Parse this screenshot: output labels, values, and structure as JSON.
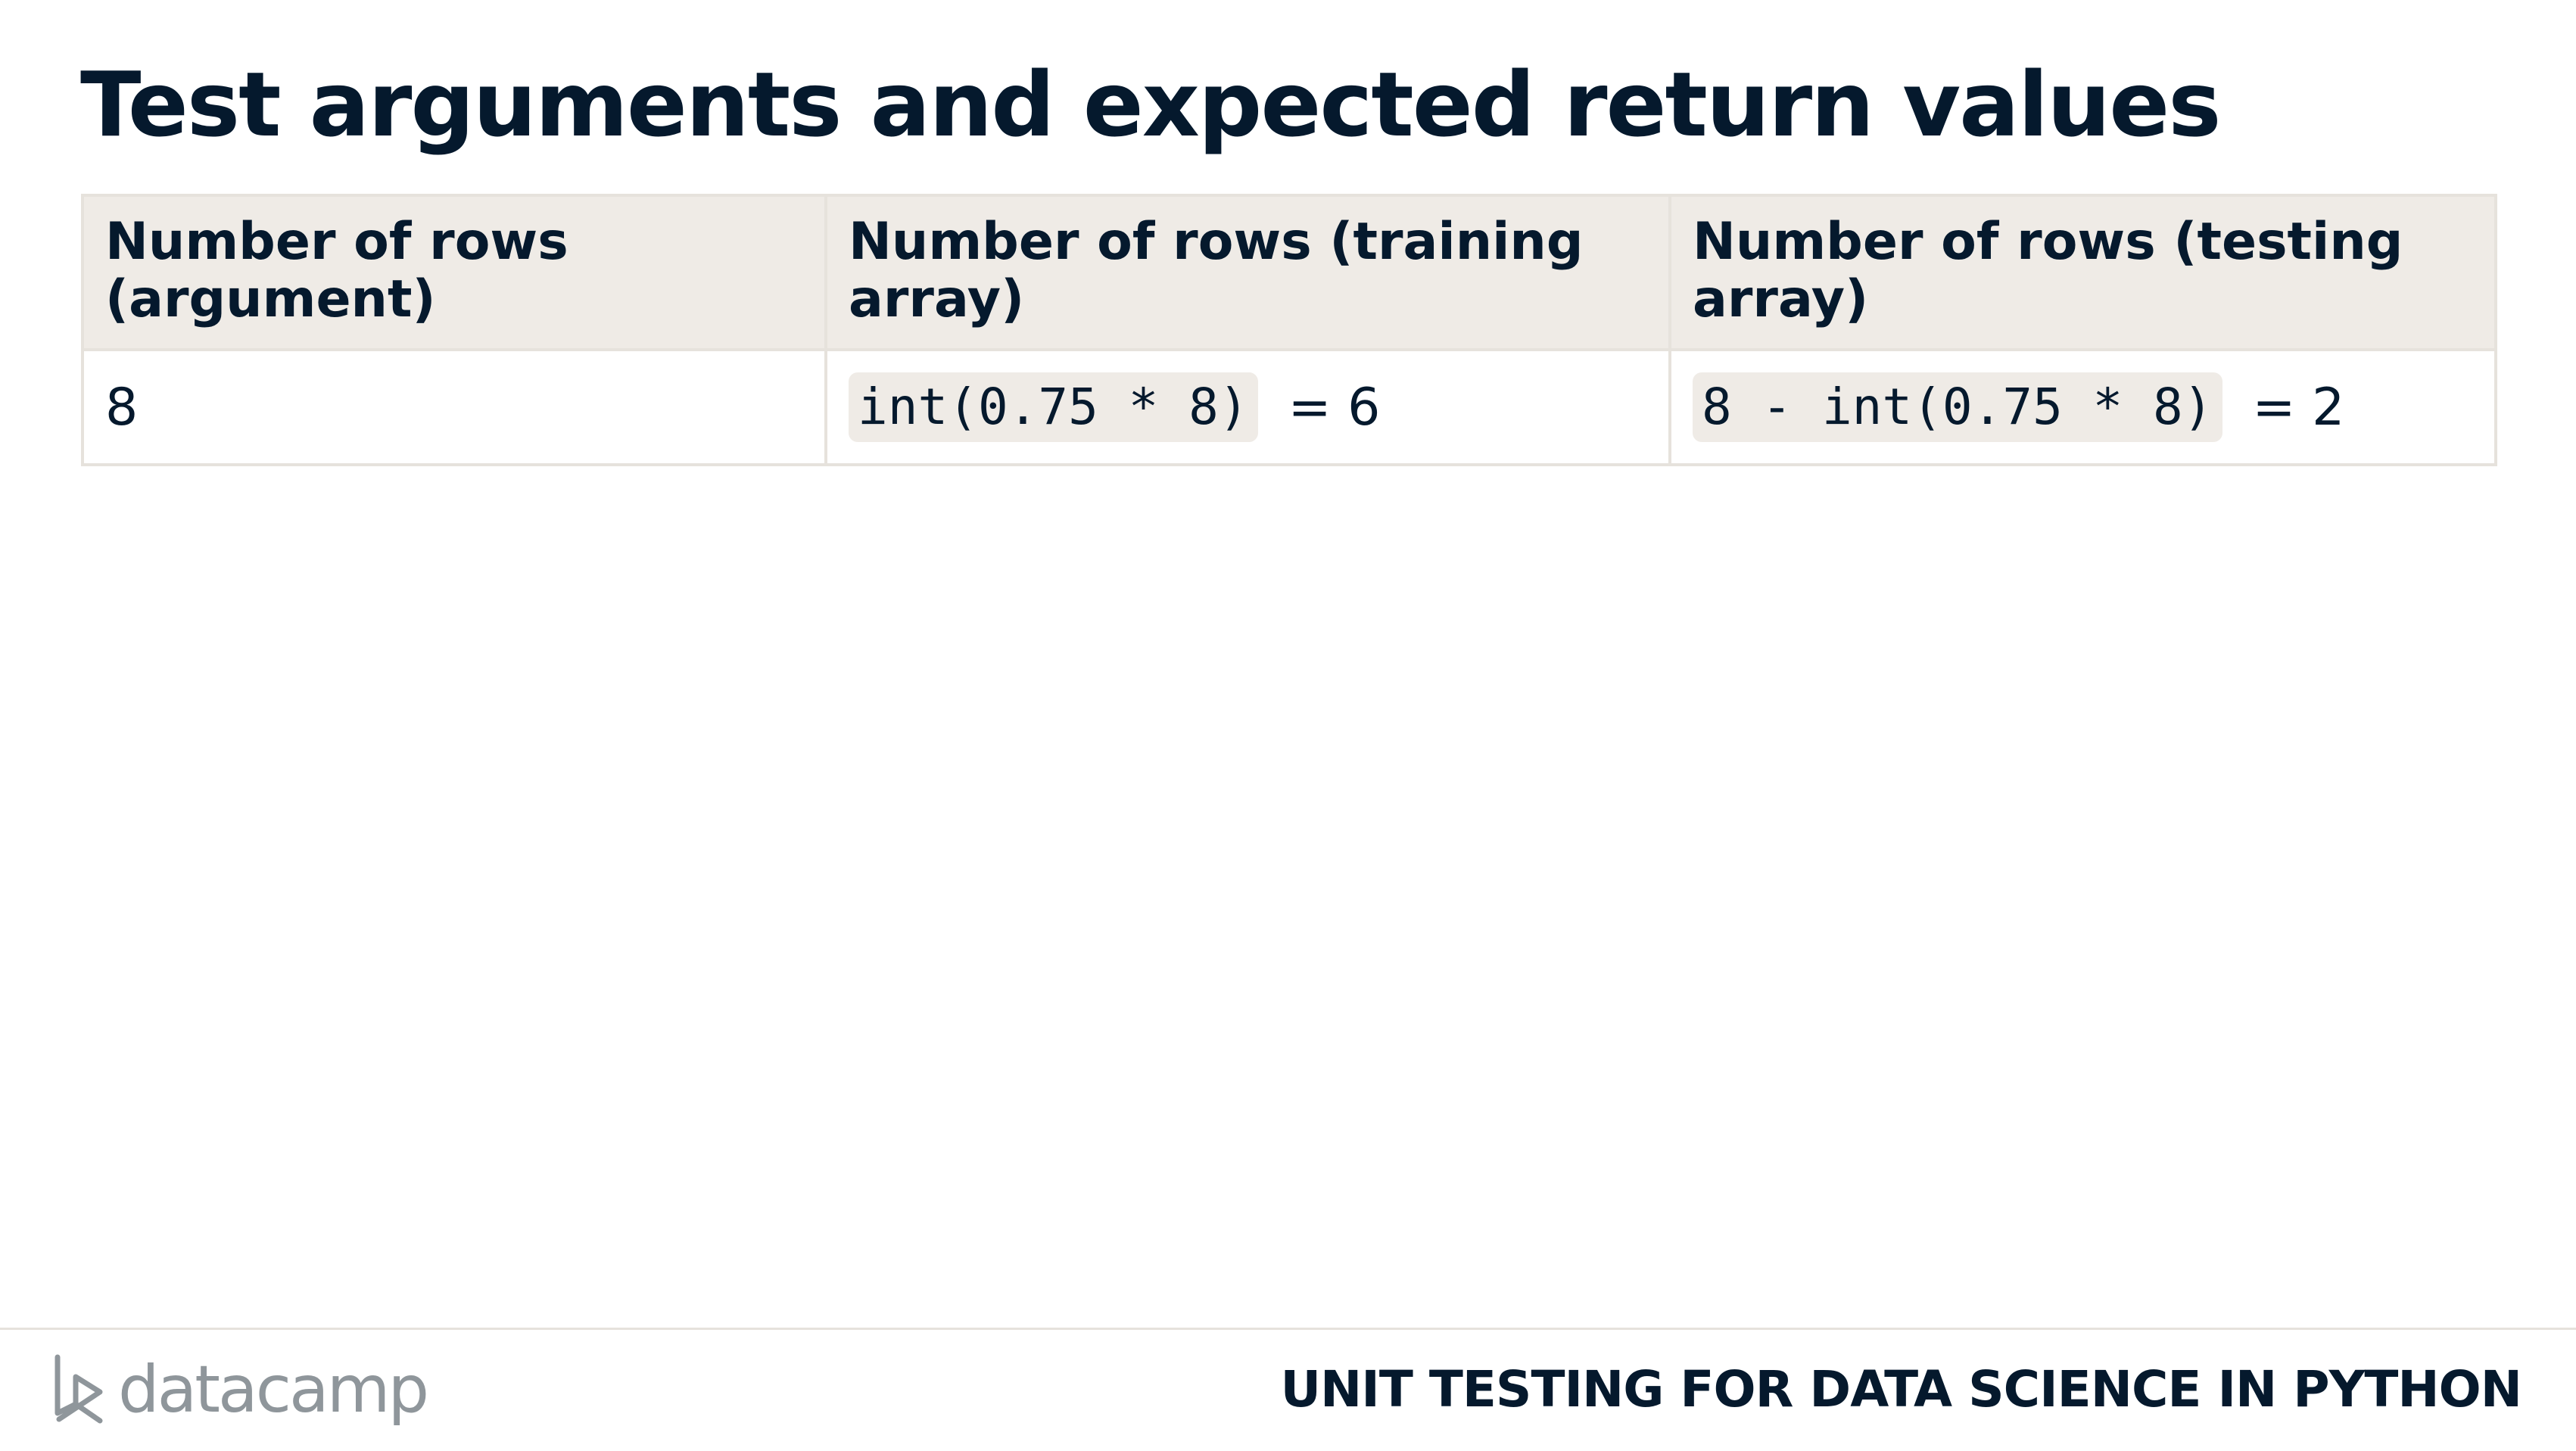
{
  "slide": {
    "title": "Test arguments and expected return values"
  },
  "table": {
    "headers": [
      "Number of rows (argument)",
      "Number of rows (training array)",
      "Number of rows (testing array)"
    ],
    "row": {
      "argument": "8",
      "training_code": "int(0.75 * 8)",
      "training_result": "= 6",
      "testing_code": "8 - int(0.75 * 8)",
      "testing_result": "= 2"
    }
  },
  "footer": {
    "logo_text": "datacamp",
    "logo_icon": "datacamp-logo-icon",
    "course_title": "UNIT TESTING FOR DATA SCIENCE IN PYTHON"
  },
  "colors": {
    "text": "#05192d",
    "header_bg": "#efebe6",
    "border": "#e6e2dc",
    "logo_gray": "#8f969b"
  }
}
